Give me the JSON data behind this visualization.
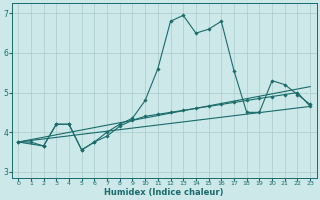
{
  "title": "",
  "xlabel": "Humidex (Indice chaleur)",
  "ylabel": "",
  "bg_color": "#cce8e8",
  "line_color": "#1a6b6b",
  "grid_color": "#aacccc",
  "xlim": [
    -0.5,
    23.5
  ],
  "ylim": [
    2.85,
    7.25
  ],
  "xticks": [
    0,
    1,
    2,
    3,
    4,
    5,
    6,
    7,
    8,
    9,
    10,
    11,
    12,
    13,
    14,
    15,
    16,
    17,
    18,
    19,
    20,
    21,
    22,
    23
  ],
  "yticks": [
    3,
    4,
    5,
    6,
    7
  ],
  "line1_x": [
    0,
    1,
    2,
    3,
    4,
    5,
    6,
    7,
    8,
    9,
    10,
    11,
    12,
    13,
    14,
    15,
    16,
    17,
    18,
    19,
    20,
    21,
    22,
    23
  ],
  "line1_y": [
    3.75,
    3.75,
    3.65,
    4.2,
    4.2,
    3.55,
    3.75,
    4.0,
    4.2,
    4.35,
    4.8,
    5.6,
    6.8,
    6.95,
    6.5,
    6.6,
    6.8,
    5.55,
    4.5,
    4.5,
    5.3,
    5.2,
    4.95,
    4.7
  ],
  "line2_x": [
    0,
    2,
    3,
    4,
    5,
    6,
    7,
    8,
    9,
    10,
    11,
    12,
    13,
    14,
    15,
    16,
    17,
    18,
    19,
    20,
    21,
    22,
    23
  ],
  "line2_y": [
    3.75,
    3.65,
    4.2,
    4.2,
    3.55,
    3.75,
    3.9,
    4.15,
    4.3,
    4.4,
    4.45,
    4.5,
    4.55,
    4.6,
    4.65,
    4.7,
    4.75,
    4.8,
    4.85,
    4.9,
    4.95,
    5.0,
    4.65
  ],
  "line3_x": [
    0,
    23
  ],
  "line3_y": [
    3.75,
    4.65
  ],
  "line4_x": [
    0,
    23
  ],
  "line4_y": [
    3.75,
    5.15
  ]
}
